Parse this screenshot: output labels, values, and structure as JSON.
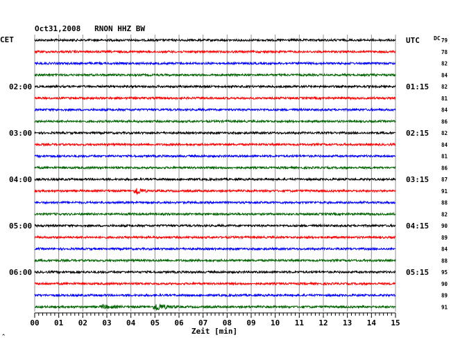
{
  "chart_data": {
    "type": "line",
    "title": "Oct31,2008   RNON HHZ BW",
    "left_axis_title": "CET",
    "right_axis_title": "UTC",
    "dc_label": "DC",
    "xlabel": "Zeit [min]",
    "xlim": [
      0,
      15
    ],
    "x_ticks": [
      "00",
      "01",
      "02",
      "03",
      "04",
      "05",
      "06",
      "07",
      "08",
      "09",
      "10",
      "11",
      "12",
      "13",
      "14",
      "15"
    ],
    "trace_colors": [
      "#000000",
      "#ff0000",
      "#0000ff",
      "#006400"
    ],
    "left_time_labels": [
      {
        "trace": 4,
        "label": "02:00"
      },
      {
        "trace": 8,
        "label": "03:00"
      },
      {
        "trace": 12,
        "label": "04:00"
      },
      {
        "trace": 16,
        "label": "05:00"
      },
      {
        "trace": 20,
        "label": "06:00"
      }
    ],
    "right_time_labels": [
      {
        "trace": 0,
        "label": "UTC"
      },
      {
        "trace": 4,
        "label": "01:15"
      },
      {
        "trace": 8,
        "label": "02:15"
      },
      {
        "trace": 12,
        "label": "03:15"
      },
      {
        "trace": 16,
        "label": "04:15"
      },
      {
        "trace": 20,
        "label": "05:15"
      }
    ],
    "dc_values": [
      "79",
      "78",
      "82",
      "84",
      "82",
      "81",
      "84",
      "86",
      "82",
      "84",
      "81",
      "86",
      "87",
      "91",
      "88",
      "82",
      "90",
      "89",
      "84",
      "88",
      "95",
      "90",
      "89",
      "91"
    ],
    "events": [
      {
        "trace": 13,
        "minute": 4.2,
        "duration": 0.45,
        "amplitude": 7
      },
      {
        "trace": 23,
        "minute": 5.0,
        "duration": 0.9,
        "amplitude": 6
      },
      {
        "trace": 23,
        "minute": 2.8,
        "duration": 0.9,
        "amplitude": 2.5
      }
    ],
    "grid": true,
    "footer_mark": "^"
  }
}
